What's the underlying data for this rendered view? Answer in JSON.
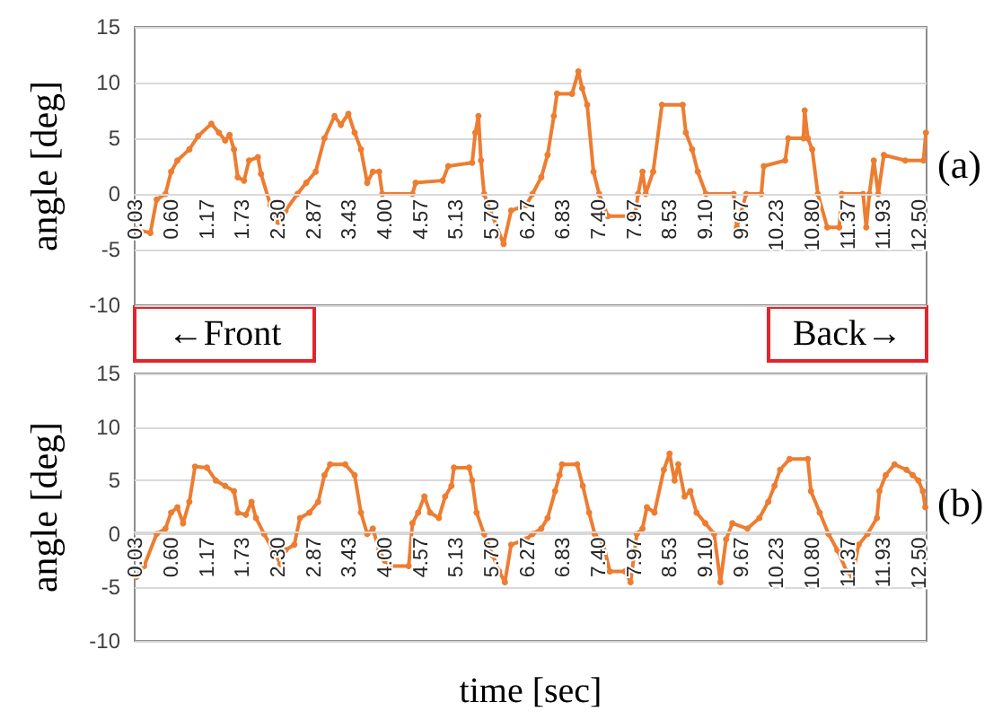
{
  "chart_data": [
    {
      "type": "line",
      "ylabel": "angle [deg]",
      "annotations": [
        "(a)",
        "←Front",
        "Back→"
      ],
      "xlim": [
        0,
        12.6
      ],
      "ylim": [
        -10,
        15
      ],
      "yticks": [
        -10,
        -5,
        0,
        5,
        10,
        15
      ],
      "xticks": [
        {
          "value": 0.03,
          "label": "0.03"
        },
        {
          "value": 0.6,
          "label": "0.60"
        },
        {
          "value": 1.17,
          "label": "1.17"
        },
        {
          "value": 1.73,
          "label": "1.73"
        },
        {
          "value": 2.3,
          "label": "2.30"
        },
        {
          "value": 2.87,
          "label": "2.87"
        },
        {
          "value": 3.43,
          "label": "3.43"
        },
        {
          "value": 4.0,
          "label": "4.00"
        },
        {
          "value": 4.57,
          "label": "4.57"
        },
        {
          "value": 5.13,
          "label": "5.13"
        },
        {
          "value": 5.7,
          "label": "5.70"
        },
        {
          "value": 6.27,
          "label": "6.27"
        },
        {
          "value": 6.83,
          "label": "6.83"
        },
        {
          "value": 7.4,
          "label": "7.40"
        },
        {
          "value": 7.97,
          "label": "7.97"
        },
        {
          "value": 8.53,
          "label": "8.53"
        },
        {
          "value": 9.1,
          "label": "9.10"
        },
        {
          "value": 9.67,
          "label": "9.67"
        },
        {
          "value": 10.23,
          "label": "10.23"
        },
        {
          "value": 10.8,
          "label": "10.80"
        },
        {
          "value": 11.37,
          "label": "11.37"
        },
        {
          "value": 11.93,
          "label": "11.93"
        },
        {
          "value": 12.5,
          "label": "12.50"
        }
      ],
      "grid": "y",
      "marker": "circle",
      "line_style": "solid",
      "series": [
        {
          "color": "#ed7d31",
          "x": [
            0.03,
            0.25,
            0.35,
            0.49,
            0.58,
            0.68,
            0.87,
            1.01,
            1.22,
            1.34,
            1.44,
            1.51,
            1.58,
            1.64,
            1.74,
            1.82,
            1.96,
            2.01,
            2.16,
            2.28,
            2.4,
            2.59,
            2.73,
            2.88,
            3.02,
            3.18,
            3.28,
            3.4,
            3.5,
            3.6,
            3.7,
            3.79,
            3.89,
            3.94,
            4.42,
            4.47,
            4.9,
            4.99,
            5.37,
            5.42,
            5.47,
            5.51,
            5.56,
            5.66,
            5.87,
            5.99,
            6.23,
            6.33,
            6.47,
            6.57,
            6.67,
            6.72,
            6.96,
            7.06,
            7.12,
            7.2,
            7.3,
            7.39,
            7.53,
            7.96,
            8.01,
            8.08,
            8.13,
            8.25,
            8.39,
            8.72,
            8.77,
            8.87,
            8.96,
            9.09,
            9.53,
            9.58,
            9.73,
            9.97,
            10.01,
            10.35,
            10.4,
            10.64,
            10.66,
            10.71,
            10.78,
            10.87,
            11.02,
            11.21,
            11.25,
            11.59,
            11.64,
            11.69,
            11.76,
            11.83,
            11.92,
            12.26,
            12.55,
            12.59
          ],
          "values": [
            -3.2,
            -3.5,
            -0.5,
            0,
            2,
            3,
            4,
            5.2,
            6.3,
            5.5,
            4.8,
            5.3,
            4,
            1.5,
            1.2,
            3,
            3.3,
            1.8,
            -1,
            -2.5,
            -1.5,
            0,
            1,
            2,
            5,
            7,
            6.2,
            7.2,
            5.5,
            4,
            1,
            2,
            2,
            0,
            0,
            1,
            1.2,
            2.5,
            2.8,
            5.5,
            7,
            3,
            0,
            -1.5,
            -4.5,
            -1.5,
            -1,
            0,
            1.5,
            3.5,
            7,
            9,
            9,
            11,
            9.5,
            8,
            2,
            0,
            -2,
            -2,
            0,
            2,
            0,
            2,
            8,
            8,
            5.5,
            4,
            2,
            0,
            0,
            -3,
            0,
            0,
            2.5,
            3,
            5,
            5,
            7.5,
            5,
            4,
            0,
            -3,
            -3,
            0,
            0,
            -3,
            0,
            3,
            0,
            3.5,
            3,
            3,
            5.5
          ]
        }
      ]
    },
    {
      "type": "line",
      "ylabel": "angle [deg]",
      "xlabel": "time [sec]",
      "annotations": [
        "(b)"
      ],
      "xlim": [
        0,
        12.6
      ],
      "ylim": [
        -10,
        15
      ],
      "yticks": [
        -10,
        -5,
        0,
        5,
        10,
        15
      ],
      "xticks": [
        {
          "value": 0.03,
          "label": "0.03"
        },
        {
          "value": 0.6,
          "label": "0.60"
        },
        {
          "value": 1.17,
          "label": "1.17"
        },
        {
          "value": 1.73,
          "label": "1.73"
        },
        {
          "value": 2.3,
          "label": "2.30"
        },
        {
          "value": 2.87,
          "label": "2.87"
        },
        {
          "value": 3.43,
          "label": "3.43"
        },
        {
          "value": 4.0,
          "label": "4.00"
        },
        {
          "value": 4.57,
          "label": "4.57"
        },
        {
          "value": 5.13,
          "label": "5.13"
        },
        {
          "value": 5.7,
          "label": "5.70"
        },
        {
          "value": 6.27,
          "label": "6.27"
        },
        {
          "value": 6.83,
          "label": "6.83"
        },
        {
          "value": 7.4,
          "label": "7.40"
        },
        {
          "value": 7.97,
          "label": "7.97"
        },
        {
          "value": 8.53,
          "label": "8.53"
        },
        {
          "value": 9.1,
          "label": "9.10"
        },
        {
          "value": 9.67,
          "label": "9.67"
        },
        {
          "value": 10.23,
          "label": "10.23"
        },
        {
          "value": 10.8,
          "label": "10.80"
        },
        {
          "value": 11.37,
          "label": "11.37"
        },
        {
          "value": 11.93,
          "label": "11.93"
        },
        {
          "value": 12.5,
          "label": "12.50"
        }
      ],
      "grid": "y",
      "marker": "circle",
      "line_style": "solid",
      "series": [
        {
          "color": "#ed7d31",
          "x": [
            0.03,
            0.15,
            0.35,
            0.49,
            0.58,
            0.68,
            0.77,
            0.87,
            0.96,
            1.15,
            1.29,
            1.44,
            1.58,
            1.64,
            1.77,
            1.86,
            1.93,
            2.06,
            2.2,
            2.32,
            2.4,
            2.54,
            2.63,
            2.78,
            2.92,
            3.02,
            3.11,
            3.35,
            3.5,
            3.6,
            3.7,
            3.79,
            3.89,
            3.98,
            4.08,
            4.36,
            4.42,
            4.51,
            4.61,
            4.7,
            4.84,
            4.94,
            5.04,
            5.08,
            5.32,
            5.37,
            5.44,
            5.56,
            5.7,
            5.8,
            5.89,
            5.99,
            6.23,
            6.33,
            6.47,
            6.57,
            6.69,
            6.76,
            6.8,
            7.04,
            7.13,
            7.23,
            7.32,
            7.46,
            7.56,
            7.8,
            7.89,
            7.99,
            8.08,
            8.15,
            8.27,
            8.42,
            8.51,
            8.59,
            8.65,
            8.75,
            8.84,
            8.94,
            9.08,
            9.22,
            9.32,
            9.41,
            9.51,
            9.75,
            9.94,
            10.08,
            10.18,
            10.27,
            10.42,
            10.71,
            10.76,
            10.9,
            11.04,
            11.18,
            11.33,
            11.42,
            11.52,
            11.66,
            11.81,
            11.85,
            11.95,
            12.09,
            12.28,
            12.38,
            12.47,
            12.54,
            12.58
          ],
          "values": [
            -4,
            -3,
            0,
            0.5,
            2,
            2.5,
            1,
            3,
            6.3,
            6.2,
            5,
            4.5,
            4,
            2,
            1.8,
            3,
            1.5,
            0,
            -1.5,
            -2.8,
            -1.5,
            -1,
            1.5,
            2,
            3,
            5.5,
            6.5,
            6.5,
            5.5,
            2,
            0,
            0.5,
            -1.5,
            -2.5,
            -3,
            -3,
            1,
            2,
            3.5,
            2,
            1.5,
            3.5,
            4.5,
            6.2,
            6.2,
            5,
            2,
            0,
            -2,
            -3.5,
            -4.5,
            -1,
            -0.5,
            0,
            0.5,
            1.5,
            4,
            5.5,
            6.5,
            6.5,
            4.5,
            2,
            0,
            -1,
            -3.5,
            -3.5,
            -4.5,
            0,
            0.5,
            2.5,
            2,
            6,
            7.5,
            5,
            6.5,
            3.5,
            4,
            2,
            1,
            0,
            -4.5,
            -0.5,
            1,
            0.5,
            1.5,
            3,
            4.5,
            6,
            7,
            7,
            4,
            2,
            0,
            -1.5,
            -3.5,
            -4,
            -1,
            0,
            1.5,
            4,
            5.5,
            6.5,
            6,
            5.5,
            5,
            4,
            2.5
          ]
        }
      ]
    }
  ]
}
